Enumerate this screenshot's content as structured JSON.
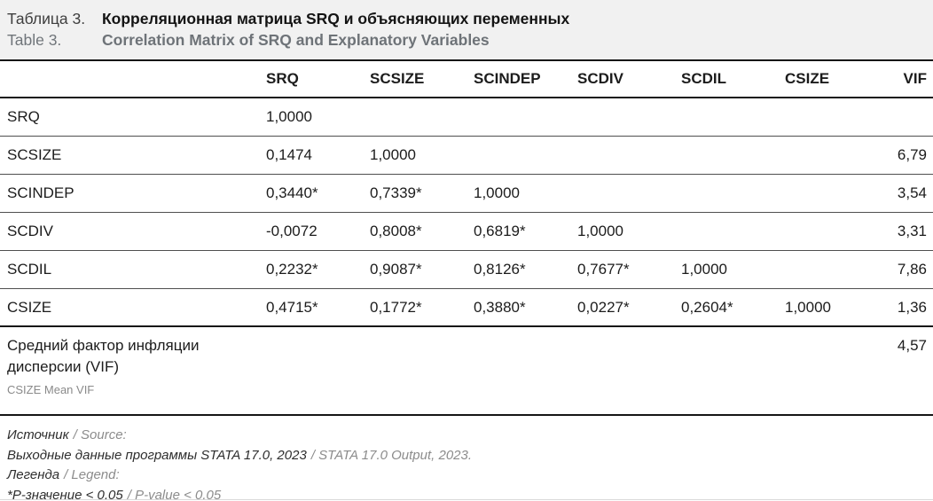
{
  "title": {
    "ru_label": "Таблица 3.",
    "ru_title": "Корреляционная матрица SRQ и объясняющих переменных",
    "en_label": "Table 3.",
    "en_title": "Correlation Matrix of SRQ and Explanatory Variables"
  },
  "table": {
    "columns": [
      "",
      "SRQ",
      "SCSIZE",
      "SCINDEP",
      "SCDIV",
      "SCDIL",
      "CSIZE",
      "VIF"
    ],
    "rows": [
      {
        "label": "SRQ",
        "values": [
          "1,0000",
          "",
          "",
          "",
          "",
          ""
        ],
        "vif": ""
      },
      {
        "label": "SCSIZE",
        "values": [
          "0,1474",
          "1,0000",
          "",
          "",
          "",
          ""
        ],
        "vif": "6,79"
      },
      {
        "label": "SCINDEP",
        "values": [
          "0,3440*",
          "0,7339*",
          "1,0000",
          "",
          "",
          ""
        ],
        "vif": "3,54"
      },
      {
        "label": "SCDIV",
        "values": [
          "-0,0072",
          "0,8008*",
          "0,6819*",
          "1,0000",
          "",
          ""
        ],
        "vif": "3,31"
      },
      {
        "label": "SCDIL",
        "values": [
          "0,2232*",
          "0,9087*",
          "0,8126*",
          "0,7677*",
          "1,0000",
          ""
        ],
        "vif": "7,86"
      },
      {
        "label": "CSIZE",
        "values": [
          "0,4715*",
          "0,1772*",
          "0,3880*",
          "0,0227*",
          "0,2604*",
          "1,0000"
        ],
        "vif": "1,36"
      }
    ],
    "summary_row": {
      "label_ru": "Средний фактор инфляции дисперсии (VIF)",
      "label_en": "CSIZE Mean VIF",
      "vif": "4,57"
    }
  },
  "footnotes": [
    {
      "ru": "Источник",
      "en": "/ Source:"
    },
    {
      "ru": "Выходные данные программы STATA 17.0, 2023",
      "en": "/ STATA 17.0 Output, 2023."
    },
    {
      "ru": "Легенда",
      "en": "/ Legend:"
    },
    {
      "ru": "*P-значение < 0,05",
      "en": "/ P-value < 0.05"
    }
  ],
  "colors": {
    "title_background": "#f1f1f1",
    "text_dark": "#1c1c1c",
    "text_muted": "#6e7378",
    "border_dark": "#161616",
    "border_light": "#d9d9d9"
  }
}
